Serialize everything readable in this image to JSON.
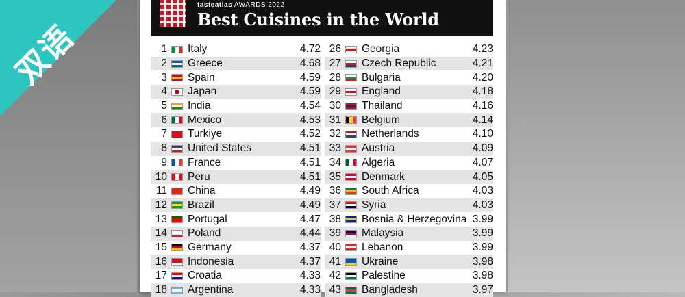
{
  "overlay": {
    "badge_text": "双语",
    "badge_color": "#2ec4c0"
  },
  "header": {
    "brand": "tasteatlas",
    "awards": "AWARDS 2022",
    "title": "Best Cuisines in the World"
  },
  "rankings_left": [
    {
      "rank": "1",
      "name": "Italy",
      "score": "4.72",
      "flag": [
        "#009246",
        "#ffffff",
        "#ce2b37"
      ],
      "flag_icon": "italy-flag-icon"
    },
    {
      "rank": "2",
      "name": "Greece",
      "score": "4.68",
      "flag": [
        "#0d5eaf",
        "#ffffff",
        "#0d5eaf"
      ],
      "flag_icon": "greece-flag-icon"
    },
    {
      "rank": "3",
      "name": "Spain",
      "score": "4.59",
      "flag": [
        "#c60b1e",
        "#ffc400",
        "#c60b1e"
      ],
      "flag_icon": "spain-flag-icon"
    },
    {
      "rank": "4",
      "name": "Japan",
      "score": "4.59",
      "flag": [
        "#ffffff",
        "#ffffff",
        "#ffffff"
      ],
      "flag_icon": "japan-flag-icon"
    },
    {
      "rank": "5",
      "name": "India",
      "score": "4.54",
      "flag": [
        "#ff9933",
        "#ffffff",
        "#138808"
      ],
      "flag_icon": "india-flag-icon"
    },
    {
      "rank": "6",
      "name": "Mexico",
      "score": "4.53",
      "flag": [
        "#006847",
        "#ffffff",
        "#ce1126"
      ],
      "flag_icon": "mexico-flag-icon"
    },
    {
      "rank": "7",
      "name": "Turkiye",
      "score": "4.52",
      "flag": [
        "#e30a17",
        "#e30a17",
        "#e30a17"
      ],
      "flag_icon": "turkiye-flag-icon"
    },
    {
      "rank": "8",
      "name": "United States",
      "score": "4.51",
      "flag": [
        "#3c3b6e",
        "#ffffff",
        "#b22234"
      ],
      "flag_icon": "usa-flag-icon"
    },
    {
      "rank": "9",
      "name": "France",
      "score": "4.51",
      "flag": [
        "#0055a4",
        "#ffffff",
        "#ef4135"
      ],
      "flag_icon": "france-flag-icon"
    },
    {
      "rank": "10",
      "name": "Peru",
      "score": "4.51",
      "flag": [
        "#d91023",
        "#ffffff",
        "#d91023"
      ],
      "flag_icon": "peru-flag-icon"
    },
    {
      "rank": "11",
      "name": "China",
      "score": "4.49",
      "flag": [
        "#de2910",
        "#de2910",
        "#de2910"
      ],
      "flag_icon": "china-flag-icon"
    },
    {
      "rank": "12",
      "name": "Brazil",
      "score": "4.49",
      "flag": [
        "#009c3b",
        "#ffdf00",
        "#009c3b"
      ],
      "flag_icon": "brazil-flag-icon"
    },
    {
      "rank": "13",
      "name": "Portugal",
      "score": "4.47",
      "flag": [
        "#006600",
        "#ff0000",
        "#ff0000"
      ],
      "flag_icon": "portugal-flag-icon"
    },
    {
      "rank": "14",
      "name": "Poland",
      "score": "4.44",
      "flag": [
        "#ffffff",
        "#ffffff",
        "#dc143c"
      ],
      "flag_icon": "poland-flag-icon"
    },
    {
      "rank": "15",
      "name": "Germany",
      "score": "4.37",
      "flag": [
        "#000000",
        "#dd0000",
        "#ffce00"
      ],
      "flag_icon": "germany-flag-icon"
    },
    {
      "rank": "16",
      "name": "Indonesia",
      "score": "4.37",
      "flag": [
        "#ce1126",
        "#ce1126",
        "#ffffff"
      ],
      "flag_icon": "indonesia-flag-icon"
    },
    {
      "rank": "17",
      "name": "Croatia",
      "score": "4.33",
      "flag": [
        "#ff0000",
        "#ffffff",
        "#171796"
      ],
      "flag_icon": "croatia-flag-icon"
    },
    {
      "rank": "18",
      "name": "Argentina",
      "score": "4.33",
      "flag": [
        "#74acdf",
        "#ffffff",
        "#74acdf"
      ],
      "flag_icon": "argentina-flag-icon"
    }
  ],
  "rankings_right": [
    {
      "rank": "26",
      "name": "Georgia",
      "score": "4.23",
      "flag": [
        "#ffffff",
        "#ff0000",
        "#ffffff"
      ],
      "flag_icon": "georgia-flag-icon"
    },
    {
      "rank": "27",
      "name": "Czech Republic",
      "score": "4.21",
      "flag": [
        "#ffffff",
        "#d7141a",
        "#11457e"
      ],
      "flag_icon": "czech-flag-icon"
    },
    {
      "rank": "28",
      "name": "Bulgaria",
      "score": "4.20",
      "flag": [
        "#ffffff",
        "#00966e",
        "#d62612"
      ],
      "flag_icon": "bulgaria-flag-icon"
    },
    {
      "rank": "29",
      "name": "England",
      "score": "4.18",
      "flag": [
        "#ffffff",
        "#ce1124",
        "#ffffff"
      ],
      "flag_icon": "england-flag-icon"
    },
    {
      "rank": "30",
      "name": "Thailand",
      "score": "4.16",
      "flag": [
        "#a51931",
        "#2d2a4a",
        "#a51931"
      ],
      "flag_icon": "thailand-flag-icon"
    },
    {
      "rank": "31",
      "name": "Belgium",
      "score": "4.14",
      "flag": [
        "#000000",
        "#fdda24",
        "#ef3340"
      ],
      "flag_icon": "belgium-flag-icon"
    },
    {
      "rank": "32",
      "name": "Netherlands",
      "score": "4.10",
      "flag": [
        "#ae1c28",
        "#ffffff",
        "#21468b"
      ],
      "flag_icon": "netherlands-flag-icon"
    },
    {
      "rank": "33",
      "name": "Austria",
      "score": "4.09",
      "flag": [
        "#ed2939",
        "#ffffff",
        "#ed2939"
      ],
      "flag_icon": "austria-flag-icon"
    },
    {
      "rank": "34",
      "name": "Algeria",
      "score": "4.07",
      "flag": [
        "#006233",
        "#ffffff",
        "#d21034"
      ],
      "flag_icon": "algeria-flag-icon"
    },
    {
      "rank": "35",
      "name": "Denmark",
      "score": "4.05",
      "flag": [
        "#c60c30",
        "#ffffff",
        "#c60c30"
      ],
      "flag_icon": "denmark-flag-icon"
    },
    {
      "rank": "36",
      "name": "South Africa",
      "score": "4.03",
      "flag": [
        "#007a4d",
        "#ffb612",
        "#de3831"
      ],
      "flag_icon": "south-africa-flag-icon"
    },
    {
      "rank": "37",
      "name": "Syria",
      "score": "4.03",
      "flag": [
        "#ce1126",
        "#ffffff",
        "#000000"
      ],
      "flag_icon": "syria-flag-icon"
    },
    {
      "rank": "38",
      "name": "Bosnia & Herzegovina",
      "score": "3.99",
      "flag": [
        "#002395",
        "#fecb00",
        "#002395"
      ],
      "flag_icon": "bosnia-flag-icon"
    },
    {
      "rank": "39",
      "name": "Malaysia",
      "score": "3.99",
      "flag": [
        "#010066",
        "#cc0001",
        "#ffffff"
      ],
      "flag_icon": "malaysia-flag-icon"
    },
    {
      "rank": "40",
      "name": "Lebanon",
      "score": "3.99",
      "flag": [
        "#ed1c24",
        "#ffffff",
        "#ed1c24"
      ],
      "flag_icon": "lebanon-flag-icon"
    },
    {
      "rank": "41",
      "name": "Ukraine",
      "score": "3.98",
      "flag": [
        "#0057b7",
        "#0057b7",
        "#ffd700"
      ],
      "flag_icon": "ukraine-flag-icon"
    },
    {
      "rank": "42",
      "name": "Palestine",
      "score": "3.98",
      "flag": [
        "#000000",
        "#ffffff",
        "#007a3d"
      ],
      "flag_icon": "palestine-flag-icon"
    },
    {
      "rank": "43",
      "name": "Bangladesh",
      "score": "3.97",
      "flag": [
        "#006a4e",
        "#f42a41",
        "#006a4e"
      ],
      "flag_icon": "bangladesh-flag-icon"
    }
  ]
}
